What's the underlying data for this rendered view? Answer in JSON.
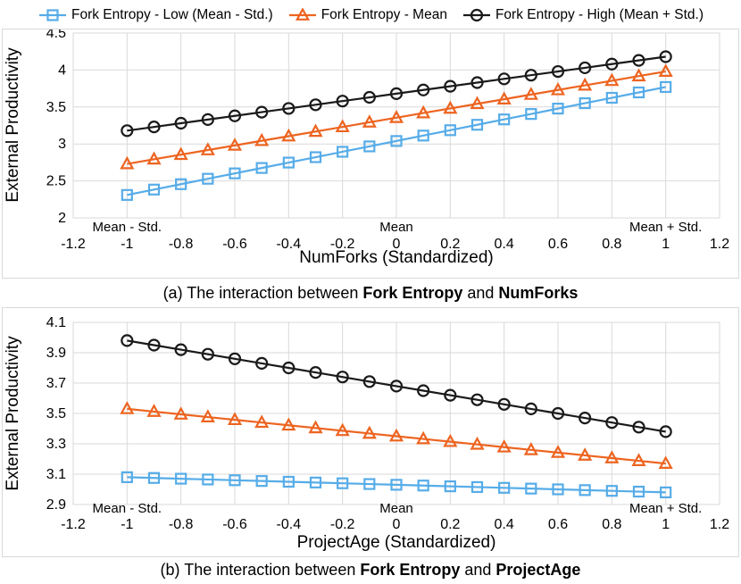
{
  "legend": {
    "items": [
      {
        "label": "Fork Entropy - Low (Mean - Std.)",
        "marker": "square",
        "color": "#56ACE8"
      },
      {
        "label": "Fork Entropy - Mean",
        "marker": "triangle",
        "color": "#ED6420"
      },
      {
        "label": "Fork Entropy - High (Mean + Std.)",
        "marker": "circle",
        "color": "#1A1A1A"
      }
    ]
  },
  "captions": {
    "a": {
      "prefix": "(a) The interaction between ",
      "term1": "Fork Entropy",
      "connector": " and ",
      "term2": "NumForks"
    },
    "b": {
      "prefix": "(b) The interaction between ",
      "term1": "Fork Entropy",
      "connector": " and ",
      "term2": "ProjectAge"
    }
  },
  "colors": {
    "gridline": "#D9D9D9",
    "plot_border": "#D9D9D9",
    "series_low": "#56ACE8",
    "series_mean": "#ED6420",
    "series_high": "#1A1A1A"
  },
  "chart_data": [
    {
      "panel": "a",
      "type": "line",
      "xlabel": "NumForks (Standardized)",
      "ylabel": "External Productivity",
      "xlim": [
        -1.2,
        1.2
      ],
      "ylim": [
        2,
        4.5
      ],
      "grid": true,
      "legend_position": "top",
      "xticks": [
        -1.2,
        -1,
        -0.8,
        -0.6,
        -0.4,
        -0.2,
        0,
        0.2,
        0.4,
        0.6,
        0.8,
        1,
        1.2
      ],
      "xtick_labels": [
        "-1.2",
        "-1",
        "-0.8",
        "-0.6",
        "-0.4",
        "-0.2",
        "0",
        "0.2",
        "0.4",
        "0.6",
        "0.8",
        "1",
        "1.2"
      ],
      "yticks": [
        2,
        2.5,
        3,
        3.5,
        4,
        4.5
      ],
      "ytick_labels": [
        "2",
        "2.5",
        "3",
        "3.5",
        "4",
        "4.5"
      ],
      "x_annotations": [
        {
          "x": -1,
          "label": "Mean - Std."
        },
        {
          "x": 0,
          "label": "Mean"
        },
        {
          "x": 1,
          "label": "Mean + Std."
        }
      ],
      "x": [
        -1,
        -0.9,
        -0.8,
        -0.7,
        -0.6,
        -0.5,
        -0.4,
        -0.3,
        -0.2,
        -0.1,
        0,
        0.1,
        0.2,
        0.3,
        0.4,
        0.5,
        0.6,
        0.7,
        0.8,
        0.9,
        1
      ],
      "series": [
        {
          "name": "Fork Entropy - Low (Mean - Std.)",
          "marker": "square",
          "color": "#56ACE8",
          "values": [
            2.31,
            2.383,
            2.456,
            2.529,
            2.602,
            2.675,
            2.748,
            2.821,
            2.894,
            2.967,
            3.04,
            3.113,
            3.186,
            3.259,
            3.332,
            3.405,
            3.478,
            3.551,
            3.624,
            3.697,
            3.77
          ]
        },
        {
          "name": "Fork Entropy - Mean",
          "marker": "triangle",
          "color": "#ED6420",
          "values": [
            2.73,
            2.793,
            2.855,
            2.918,
            2.98,
            3.043,
            3.105,
            3.168,
            3.23,
            3.293,
            3.355,
            3.418,
            3.48,
            3.543,
            3.605,
            3.668,
            3.73,
            3.793,
            3.855,
            3.918,
            3.98
          ]
        },
        {
          "name": "Fork Entropy - High (Mean + Std.)",
          "marker": "circle",
          "color": "#1A1A1A",
          "values": [
            3.18,
            3.23,
            3.28,
            3.33,
            3.38,
            3.43,
            3.48,
            3.53,
            3.58,
            3.63,
            3.68,
            3.73,
            3.78,
            3.83,
            3.88,
            3.93,
            3.98,
            4.03,
            4.08,
            4.13,
            4.18
          ]
        }
      ]
    },
    {
      "panel": "b",
      "type": "line",
      "xlabel": "ProjectAge (Standardized)",
      "ylabel": "External Productivity",
      "xlim": [
        -1.2,
        1.2
      ],
      "ylim": [
        2.9,
        4.1
      ],
      "grid": true,
      "legend_position": "top",
      "xticks": [
        -1.2,
        -1,
        -0.8,
        -0.6,
        -0.4,
        -0.2,
        0,
        0.2,
        0.4,
        0.6,
        0.8,
        1,
        1.2
      ],
      "xtick_labels": [
        "-1.2",
        "-1",
        "-0.8",
        "-0.6",
        "-0.4",
        "-0.2",
        "0",
        "0.2",
        "0.4",
        "0.6",
        "0.8",
        "1",
        "1.2"
      ],
      "yticks": [
        2.9,
        3.1,
        3.3,
        3.5,
        3.7,
        3.9,
        4.1
      ],
      "ytick_labels": [
        "2.9",
        "3.1",
        "3.3",
        "3.5",
        "3.7",
        "3.9",
        "4.1"
      ],
      "x_annotations": [
        {
          "x": -1,
          "label": "Mean - Std."
        },
        {
          "x": 0,
          "label": "Mean"
        },
        {
          "x": 1,
          "label": "Mean + Std."
        }
      ],
      "x": [
        -1,
        -0.9,
        -0.8,
        -0.7,
        -0.6,
        -0.5,
        -0.4,
        -0.3,
        -0.2,
        -0.1,
        0,
        0.1,
        0.2,
        0.3,
        0.4,
        0.5,
        0.6,
        0.7,
        0.8,
        0.9,
        1
      ],
      "series": [
        {
          "name": "Fork Entropy - Low (Mean - Std.)",
          "marker": "square",
          "color": "#56ACE8",
          "values": [
            3.08,
            3.075,
            3.07,
            3.065,
            3.06,
            3.055,
            3.05,
            3.045,
            3.04,
            3.035,
            3.03,
            3.025,
            3.02,
            3.015,
            3.01,
            3.005,
            3.0,
            2.995,
            2.99,
            2.985,
            2.98
          ]
        },
        {
          "name": "Fork Entropy - Mean",
          "marker": "triangle",
          "color": "#ED6420",
          "values": [
            3.53,
            3.512,
            3.494,
            3.476,
            3.458,
            3.44,
            3.422,
            3.404,
            3.386,
            3.368,
            3.35,
            3.332,
            3.314,
            3.296,
            3.278,
            3.26,
            3.242,
            3.224,
            3.206,
            3.188,
            3.17
          ]
        },
        {
          "name": "Fork Entropy - High (Mean + Std.)",
          "marker": "circle",
          "color": "#1A1A1A",
          "values": [
            3.98,
            3.95,
            3.92,
            3.89,
            3.86,
            3.83,
            3.8,
            3.77,
            3.74,
            3.71,
            3.68,
            3.65,
            3.62,
            3.59,
            3.56,
            3.53,
            3.5,
            3.47,
            3.44,
            3.41,
            3.38
          ]
        }
      ]
    }
  ]
}
